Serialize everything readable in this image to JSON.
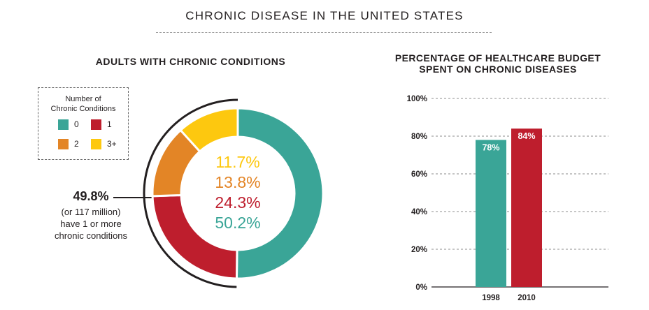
{
  "header": {
    "title": "CHRONIC DISEASE IN THE UNITED STATES"
  },
  "donut": {
    "title": "ADULTS WITH CHRONIC CONDITIONS",
    "legend": {
      "title_line1": "Number of",
      "title_line2": "Chronic Conditions",
      "items": [
        {
          "label": "0",
          "color": "#3aa597"
        },
        {
          "label": "1",
          "color": "#be1e2d"
        },
        {
          "label": "2",
          "color": "#e38526"
        },
        {
          "label": "3+",
          "color": "#fdc80f"
        }
      ]
    },
    "callout": {
      "value": "49.8%",
      "line1": "(or 117 million)",
      "line2": "have 1 or more",
      "line3": "chronic conditions"
    }
  },
  "bars": {
    "title_line1": "PERCENTAGE OF HEALTHCARE BUDGET",
    "title_line2": "SPENT ON CHRONIC DISEASES"
  },
  "chart_data": [
    {
      "type": "pie",
      "categories": [
        "0",
        "1",
        "2",
        "3+"
      ],
      "values": [
        50.2,
        24.3,
        13.8,
        11.7
      ],
      "labels": [
        "50.2%",
        "24.3%",
        "13.8%",
        "11.7%"
      ],
      "colors": [
        "#3aa597",
        "#be1e2d",
        "#e38526",
        "#fdc80f"
      ],
      "title": "ADULTS WITH CHRONIC CONDITIONS",
      "legend_title": "Number of Chronic Conditions"
    },
    {
      "type": "bar",
      "categories": [
        "1998",
        "2010"
      ],
      "values": [
        78,
        84
      ],
      "labels": [
        "78%",
        "84%"
      ],
      "colors": [
        "#3aa597",
        "#be1e2d"
      ],
      "title": "PERCENTAGE OF HEALTHCARE BUDGET SPENT ON CHRONIC DISEASES",
      "ylim": [
        0,
        100
      ],
      "yticks": [
        "0%",
        "20%",
        "40%",
        "60%",
        "80%",
        "100%"
      ],
      "grid": true
    }
  ]
}
